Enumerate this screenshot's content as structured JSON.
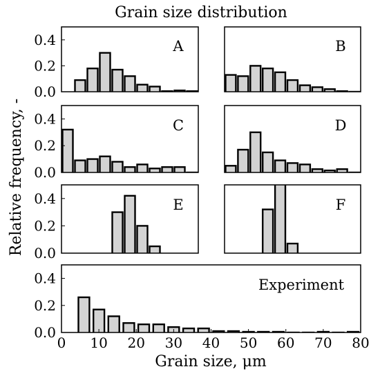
{
  "chart_data": {
    "type": "bar",
    "title": "Grain size distribution",
    "xlabel": "Grain size, μm",
    "ylabel": "Relative frequency, -",
    "bar_color": "#d3d3d3",
    "edge_color": "#000000",
    "panels": [
      {
        "id": "A",
        "label": "A",
        "xlim": [
          0,
          44
        ],
        "ylim": [
          0,
          0.5
        ],
        "yticks": [
          "0.0",
          "0.2",
          "0.4"
        ],
        "yticks_values": [
          0,
          0.2,
          0.4
        ],
        "bin_width": 4,
        "x": [
          6,
          10,
          14,
          18,
          22,
          26,
          30,
          34,
          38,
          42
        ],
        "values": [
          0.09,
          0.18,
          0.3,
          0.17,
          0.12,
          0.055,
          0.04,
          0.005,
          0.01,
          0.005
        ]
      },
      {
        "id": "B",
        "label": "B",
        "xlim": [
          0,
          44
        ],
        "ylim": [
          0,
          0.5
        ],
        "yticks": [],
        "yticks_values": [],
        "bin_width": 4,
        "x": [
          2,
          6,
          10,
          14,
          18,
          22,
          26,
          30,
          34,
          38,
          42
        ],
        "values": [
          0.13,
          0.12,
          0.2,
          0.18,
          0.15,
          0.09,
          0.05,
          0.035,
          0.02,
          0.005,
          0.0
        ]
      },
      {
        "id": "C",
        "label": "C",
        "xlim": [
          0,
          44
        ],
        "ylim": [
          0,
          0.5
        ],
        "yticks": [
          "0.0",
          "0.2",
          "0.4"
        ],
        "yticks_values": [
          0,
          0.2,
          0.4
        ],
        "bin_width": 4,
        "x": [
          2,
          6,
          10,
          14,
          18,
          22,
          26,
          30,
          34,
          38,
          42
        ],
        "values": [
          0.32,
          0.09,
          0.1,
          0.12,
          0.08,
          0.04,
          0.06,
          0.03,
          0.04,
          0.04,
          0.0
        ]
      },
      {
        "id": "D",
        "label": "D",
        "xlim": [
          0,
          44
        ],
        "ylim": [
          0,
          0.5
        ],
        "yticks": [],
        "yticks_values": [],
        "bin_width": 4,
        "x": [
          2,
          6,
          10,
          14,
          18,
          22,
          26,
          30,
          34,
          38,
          42
        ],
        "values": [
          0.05,
          0.17,
          0.3,
          0.15,
          0.09,
          0.07,
          0.06,
          0.025,
          0.015,
          0.025,
          0.0
        ]
      },
      {
        "id": "E",
        "label": "E",
        "xlim": [
          0,
          44
        ],
        "ylim": [
          0,
          0.5
        ],
        "yticks": [
          "0.0",
          "0.2",
          "0.4"
        ],
        "yticks_values": [
          0,
          0.2,
          0.4
        ],
        "bin_width": 4,
        "x": [
          18,
          22,
          26,
          30
        ],
        "values": [
          0.3,
          0.42,
          0.2,
          0.05
        ]
      },
      {
        "id": "F",
        "label": "F",
        "xlim": [
          0,
          44
        ],
        "ylim": [
          0,
          0.5
        ],
        "yticks": [],
        "yticks_values": [],
        "bin_width": 4,
        "x": [
          14,
          18,
          22
        ],
        "values": [
          0.32,
          0.52,
          0.07
        ]
      },
      {
        "id": "Experiment",
        "label": "Experiment",
        "xlim": [
          0,
          80
        ],
        "ylim": [
          0,
          0.5
        ],
        "yticks": [
          "0.0",
          "0.2",
          "0.4"
        ],
        "yticks_values": [
          0,
          0.2,
          0.4
        ],
        "xticks": [
          "0",
          "10",
          "20",
          "30",
          "40",
          "50",
          "60",
          "70",
          "80"
        ],
        "xticks_values": [
          0,
          10,
          20,
          30,
          40,
          50,
          60,
          70,
          80
        ],
        "bin_width": 3.5,
        "x": [
          6,
          10,
          14,
          18,
          22,
          26,
          30,
          34,
          38,
          42,
          46,
          50,
          54,
          58,
          62,
          66,
          70,
          74,
          78
        ],
        "values": [
          0.26,
          0.17,
          0.12,
          0.07,
          0.06,
          0.06,
          0.04,
          0.03,
          0.03,
          0.01,
          0.01,
          0.005,
          0.005,
          0.005,
          0.0,
          0.0,
          0.005,
          0.0,
          0.005
        ]
      }
    ]
  }
}
